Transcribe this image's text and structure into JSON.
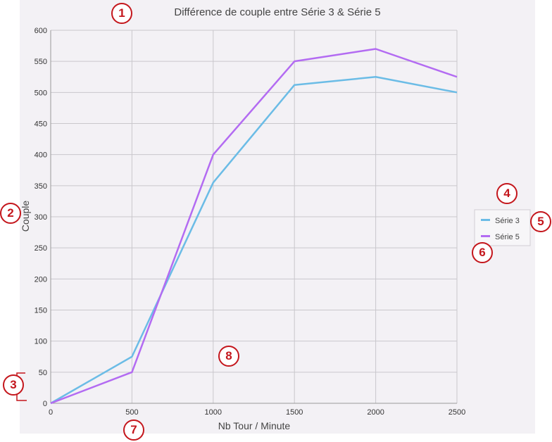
{
  "colors": {
    "serie3": "#6bbce6",
    "serie5": "#b36bf2",
    "grid": "#c9c7cc",
    "callout": "#c4161c",
    "background": "#f3f1f5"
  },
  "callouts": [
    "1",
    "2",
    "3",
    "4",
    "5",
    "6",
    "7",
    "8"
  ],
  "chart_data": {
    "type": "line",
    "title": "Différence de couple entre Série 3 & Série 5",
    "xlabel": "Nb Tour / Minute",
    "ylabel": "Couple",
    "x": [
      0,
      500,
      1000,
      1500,
      2000,
      2500
    ],
    "xlim": [
      0,
      2500
    ],
    "ylim": [
      0,
      600
    ],
    "xticks": [
      "0",
      "500",
      "1000",
      "1500",
      "2000",
      "2500"
    ],
    "yticks": [
      "0",
      "50",
      "100",
      "150",
      "200",
      "250",
      "300",
      "350",
      "400",
      "450",
      "500",
      "550",
      "600"
    ],
    "grid": true,
    "legend": "right",
    "series": [
      {
        "name": "Série 3",
        "values": [
          0,
          75,
          355,
          512,
          525,
          500
        ]
      },
      {
        "name": "Série 5",
        "values": [
          0,
          50,
          400,
          550,
          570,
          525
        ]
      }
    ]
  }
}
